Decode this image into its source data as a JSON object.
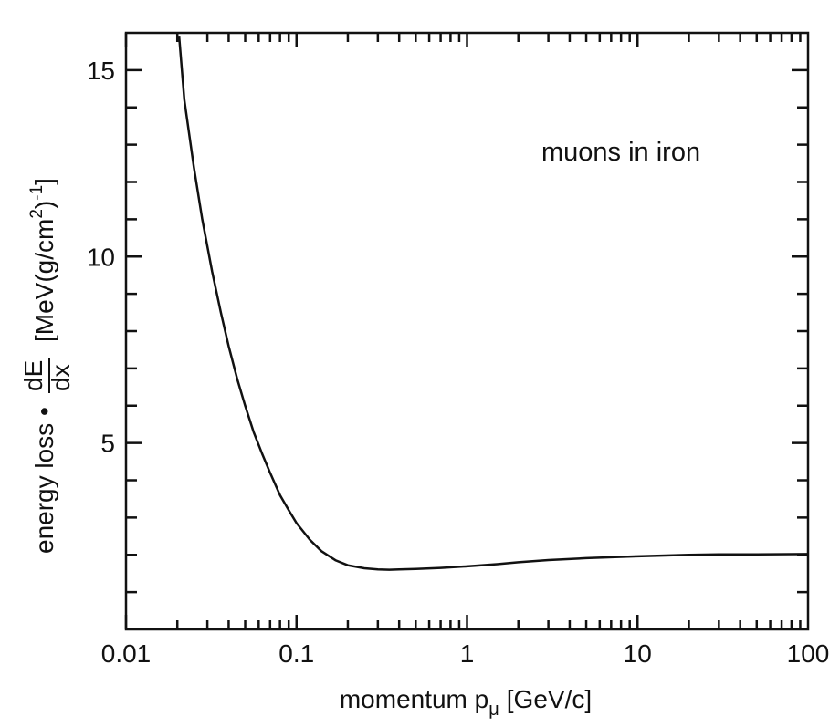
{
  "chart_data": {
    "type": "line",
    "title": "",
    "annotation": "muons in iron",
    "xlabel": {
      "main": "momentum p",
      "sub": "μ",
      "unit": "[GeV/c]"
    },
    "ylabel": {
      "prefix": "energy loss •",
      "frac_num": "dE",
      "frac_den": "dx",
      "unit_before": "[MeV(g/cm",
      "unit_sup": "2",
      "unit_after": ")",
      "unit_exp": "-1",
      "unit_close": "]"
    },
    "x_scale": "log",
    "xlim": [
      0.01,
      100
    ],
    "ylim": [
      0,
      16
    ],
    "x_ticks": [
      {
        "value": 0.01,
        "label": "0.01"
      },
      {
        "value": 0.1,
        "label": "0.1"
      },
      {
        "value": 1,
        "label": "1"
      },
      {
        "value": 10,
        "label": "10"
      },
      {
        "value": 100,
        "label": "100"
      }
    ],
    "y_ticks": [
      {
        "value": 5,
        "label": "5"
      },
      {
        "value": 10,
        "label": "10"
      },
      {
        "value": 15,
        "label": "15"
      }
    ],
    "y_minor_step": 1,
    "grid": false,
    "series": [
      {
        "color": "#111111",
        "points": [
          [
            0.0205,
            15.9
          ],
          [
            0.022,
            14.2
          ],
          [
            0.025,
            12.4
          ],
          [
            0.028,
            11.0
          ],
          [
            0.032,
            9.6
          ],
          [
            0.036,
            8.5
          ],
          [
            0.04,
            7.6
          ],
          [
            0.045,
            6.7
          ],
          [
            0.05,
            6.0
          ],
          [
            0.056,
            5.3
          ],
          [
            0.063,
            4.7
          ],
          [
            0.07,
            4.2
          ],
          [
            0.08,
            3.6
          ],
          [
            0.09,
            3.2
          ],
          [
            0.1,
            2.85
          ],
          [
            0.12,
            2.4
          ],
          [
            0.14,
            2.1
          ],
          [
            0.17,
            1.85
          ],
          [
            0.2,
            1.72
          ],
          [
            0.25,
            1.64
          ],
          [
            0.3,
            1.61
          ],
          [
            0.35,
            1.6
          ],
          [
            0.4,
            1.61
          ],
          [
            0.5,
            1.62
          ],
          [
            0.7,
            1.65
          ],
          [
            1.0,
            1.69
          ],
          [
            1.5,
            1.75
          ],
          [
            2.0,
            1.8
          ],
          [
            3.0,
            1.86
          ],
          [
            5.0,
            1.91
          ],
          [
            10.0,
            1.96
          ],
          [
            20.0,
            2.0
          ],
          [
            30.0,
            2.01
          ],
          [
            50.0,
            2.01
          ],
          [
            100.0,
            2.02
          ]
        ]
      }
    ]
  }
}
